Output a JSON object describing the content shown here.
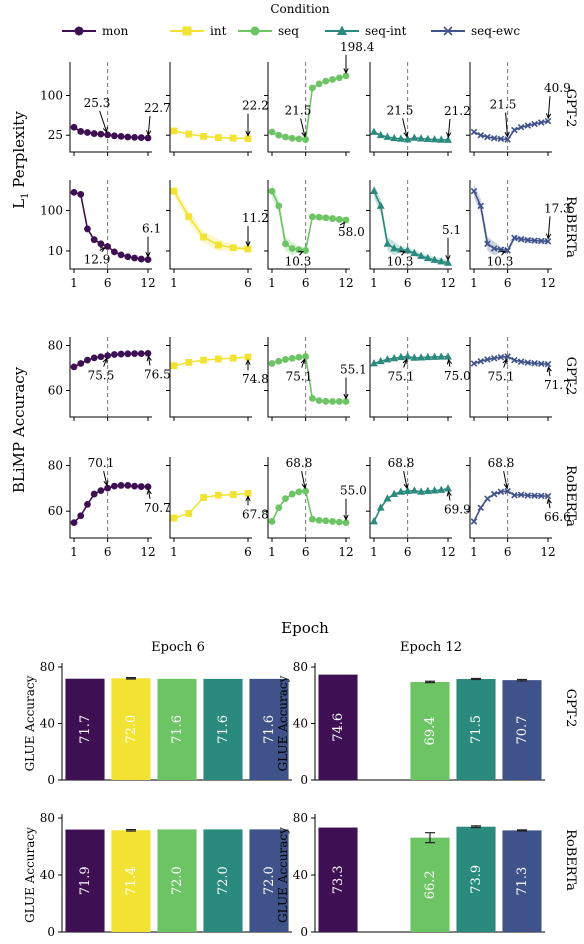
{
  "legend": {
    "title": "Condition",
    "entries": [
      {
        "key": "mon",
        "label": "mon",
        "color": "#3e1053",
        "marker": "circle"
      },
      {
        "key": "int",
        "label": "int",
        "color": "#f2e233",
        "marker": "square"
      },
      {
        "key": "seq",
        "label": "seq",
        "color": "#6cc464",
        "marker": "circle"
      },
      {
        "key": "seq-int",
        "label": "seq-int",
        "color": "#2a8a7d",
        "marker": "triangle"
      },
      {
        "key": "seq-ewc",
        "label": "seq-ewc",
        "color": "#3f5289",
        "marker": "x"
      }
    ]
  },
  "labels": {
    "ppl_ylabel": "L",
    "ppl_ylabel_sub": "1",
    "ppl_ylabel_rest": " Perplexity",
    "blimp_ylabel": "BLiMP Accuracy",
    "epoch_xlabel": "Epoch",
    "glue_ylabel": "GLUE Accuracy",
    "row_gpt2": "GPT-2",
    "row_roberta": "RoBERTa",
    "glue_title_e6": "Epoch 6",
    "glue_title_e12": "Epoch 12"
  },
  "chart_data": [
    {
      "type": "line",
      "title": "",
      "ylabel": "L1 Perplexity",
      "model": "GPT-2",
      "y_scale": "log",
      "yticks": [
        25,
        100
      ],
      "ylim": [
        16,
        280
      ],
      "xticks": [
        1,
        6,
        12
      ],
      "vline": 6,
      "series": [
        {
          "name": "mon",
          "x": [
            1,
            2,
            3,
            4,
            5,
            6,
            7,
            8,
            9,
            10,
            11,
            12
          ],
          "y": [
            33,
            28.5,
            27.5,
            26.5,
            26,
            25.3,
            24.5,
            24,
            23.5,
            23.2,
            23,
            22.7
          ],
          "annotations": [
            {
              "x": 6,
              "text": "25.3"
            },
            {
              "x": 12,
              "text": "22.7"
            }
          ]
        },
        {
          "name": "int",
          "x": [
            1,
            2,
            3,
            4,
            5,
            6
          ],
          "y": [
            29,
            26,
            24,
            23,
            22.6,
            22.2
          ],
          "annotations": [
            {
              "x": 6,
              "text": "22.2"
            }
          ]
        },
        {
          "name": "seq",
          "x": [
            1,
            2,
            3,
            4,
            5,
            6,
            7,
            8,
            9,
            10,
            11,
            12
          ],
          "y": [
            28,
            25,
            23.5,
            22.5,
            22,
            21.5,
            130,
            150,
            165,
            175,
            185,
            198.4
          ],
          "band": 0.05,
          "annotations": [
            {
              "x": 6,
              "text": "21.5"
            },
            {
              "x": 12,
              "text": "198.4"
            }
          ]
        },
        {
          "name": "seq-int",
          "x": [
            1,
            2,
            3,
            4,
            5,
            6,
            7,
            8,
            9,
            10,
            11,
            12
          ],
          "y": [
            28,
            25,
            23.5,
            22.5,
            22,
            21.5,
            22.8,
            22.2,
            21.8,
            21.5,
            21.3,
            21.2
          ],
          "annotations": [
            {
              "x": 6,
              "text": "21.5"
            },
            {
              "x": 12,
              "text": "21.2"
            }
          ]
        },
        {
          "name": "seq-ewc",
          "x": [
            1,
            2,
            3,
            4,
            5,
            6,
            7,
            8,
            9,
            10,
            11,
            12
          ],
          "y": [
            28,
            25,
            23.5,
            22.5,
            22,
            21.5,
            30,
            33,
            35,
            37,
            39,
            40.9
          ],
          "annotations": [
            {
              "x": 6,
              "text": "21.5"
            },
            {
              "x": 12,
              "text": "40.9"
            }
          ]
        }
      ]
    },
    {
      "type": "line",
      "title": "",
      "ylabel": "L1 Perplexity",
      "model": "RoBERTa",
      "y_scale": "log",
      "yticks": [
        10,
        100
      ],
      "ylim": [
        4.5,
        450
      ],
      "xticks": [
        1,
        6,
        12
      ],
      "vline": 6,
      "series": [
        {
          "name": "mon",
          "x": [
            1,
            2,
            3,
            4,
            5,
            6,
            7,
            8,
            9,
            10,
            11,
            12
          ],
          "y": [
            280,
            250,
            35,
            19,
            15,
            12.9,
            9.5,
            8,
            7.2,
            6.7,
            6.3,
            6.1
          ],
          "annotations": [
            {
              "x": 6,
              "text": "12.9"
            },
            {
              "x": 12,
              "text": "6.1"
            }
          ]
        },
        {
          "name": "int",
          "x": [
            1,
            2,
            3,
            4,
            5,
            6
          ],
          "y": [
            300,
            70,
            22,
            14,
            12,
            11.2
          ],
          "band": 0.25,
          "annotations": [
            {
              "x": 6,
              "text": "11.2"
            }
          ]
        },
        {
          "name": "seq",
          "x": [
            1,
            2,
            3,
            4,
            5,
            6,
            7,
            8,
            9,
            10,
            11,
            12
          ],
          "y": [
            300,
            130,
            15,
            11.5,
            10.8,
            10.3,
            70,
            68,
            66,
            63,
            60,
            58
          ],
          "band": 0.3,
          "annotations": [
            {
              "x": 6,
              "text": "10.3"
            },
            {
              "x": 12,
              "text": "58.0"
            }
          ]
        },
        {
          "name": "seq-int",
          "x": [
            1,
            2,
            3,
            4,
            5,
            6,
            7,
            8,
            9,
            10,
            11,
            12
          ],
          "y": [
            300,
            130,
            15,
            11.5,
            10.8,
            10.3,
            8.8,
            7.5,
            6.6,
            6,
            5.5,
            5.1
          ],
          "band": 0.3,
          "annotations": [
            {
              "x": 6,
              "text": "10.3"
            },
            {
              "x": 12,
              "text": "5.1"
            }
          ]
        },
        {
          "name": "seq-ewc",
          "x": [
            1,
            2,
            3,
            4,
            5,
            6,
            7,
            8,
            9,
            10,
            11,
            12
          ],
          "y": [
            300,
            130,
            15,
            11.5,
            10.8,
            10.3,
            21,
            19.5,
            18.5,
            18,
            17.6,
            17.3
          ],
          "band": 0.3,
          "annotations": [
            {
              "x": 6,
              "text": "10.3"
            },
            {
              "x": 12,
              "text": "17.3"
            }
          ]
        }
      ]
    },
    {
      "type": "line",
      "title": "",
      "ylabel": "BLiMP Accuracy",
      "model": "GPT-2",
      "yticks": [
        60,
        80
      ],
      "ylim": [
        50,
        82
      ],
      "xticks": [
        1,
        6,
        12
      ],
      "vline": 6,
      "series": [
        {
          "name": "mon",
          "x": [
            1,
            2,
            3,
            4,
            5,
            6,
            7,
            8,
            9,
            10,
            11,
            12
          ],
          "y": [
            70.5,
            72,
            73.5,
            74.5,
            75,
            75.5,
            76,
            76.2,
            76.3,
            76.4,
            76.4,
            76.5
          ],
          "annotations": [
            {
              "x": 6,
              "text": "75.5"
            },
            {
              "x": 12,
              "text": "76.5"
            }
          ]
        },
        {
          "name": "int",
          "x": [
            1,
            2,
            3,
            4,
            5,
            6
          ],
          "y": [
            71,
            72.5,
            73.5,
            74,
            74.4,
            74.8
          ],
          "annotations": [
            {
              "x": 6,
              "text": "74.8"
            }
          ]
        },
        {
          "name": "seq",
          "x": [
            1,
            2,
            3,
            4,
            5,
            6,
            7,
            8,
            9,
            10,
            11,
            12
          ],
          "y": [
            72,
            73,
            73.8,
            74.3,
            74.8,
            75.1,
            56.5,
            55.5,
            55.2,
            55.1,
            55.1,
            55.1
          ],
          "annotations": [
            {
              "x": 6,
              "text": "75.1"
            },
            {
              "x": 12,
              "text": "55.1"
            }
          ]
        },
        {
          "name": "seq-int",
          "x": [
            1,
            2,
            3,
            4,
            5,
            6,
            7,
            8,
            9,
            10,
            11,
            12
          ],
          "y": [
            72,
            73,
            73.8,
            74.3,
            74.8,
            75.1,
            74.5,
            74.6,
            74.8,
            74.9,
            75,
            75
          ],
          "annotations": [
            {
              "x": 6,
              "text": "75.1"
            },
            {
              "x": 12,
              "text": "75.0"
            }
          ]
        },
        {
          "name": "seq-ewc",
          "x": [
            1,
            2,
            3,
            4,
            5,
            6,
            7,
            8,
            9,
            10,
            11,
            12
          ],
          "y": [
            72,
            73,
            73.8,
            74.3,
            74.8,
            75.1,
            73.5,
            72.8,
            72.4,
            72.1,
            71.9,
            71.7
          ],
          "annotations": [
            {
              "x": 6,
              "text": "75.1"
            },
            {
              "x": 12,
              "text": "71.7"
            }
          ]
        }
      ]
    },
    {
      "type": "line",
      "title": "",
      "ylabel": "BLiMP Accuracy",
      "model": "RoBERTa",
      "yticks": [
        60,
        80
      ],
      "ylim": [
        50,
        82
      ],
      "xticks": [
        1,
        6,
        12
      ],
      "vline": 6,
      "series": [
        {
          "name": "mon",
          "x": [
            1,
            2,
            3,
            4,
            5,
            6,
            7,
            8,
            9,
            10,
            11,
            12
          ],
          "y": [
            55,
            58,
            63,
            67.5,
            69,
            70.1,
            71,
            71.3,
            71.3,
            71,
            70.8,
            70.7
          ],
          "annotations": [
            {
              "x": 6,
              "text": "70.1"
            },
            {
              "x": 12,
              "text": "70.7"
            }
          ]
        },
        {
          "name": "int",
          "x": [
            1,
            2,
            3,
            4,
            5,
            6
          ],
          "y": [
            57,
            59,
            66,
            67,
            67.3,
            67.8
          ],
          "annotations": [
            {
              "x": 6,
              "text": "67.8"
            }
          ]
        },
        {
          "name": "seq",
          "x": [
            1,
            2,
            3,
            4,
            5,
            6,
            7,
            8,
            9,
            10,
            11,
            12
          ],
          "y": [
            55.5,
            61.5,
            65.5,
            67.5,
            68.5,
            68.8,
            56.5,
            56,
            55.8,
            55.5,
            55.2,
            55
          ],
          "annotations": [
            {
              "x": 6,
              "text": "68.8"
            },
            {
              "x": 12,
              "text": "55.0"
            }
          ]
        },
        {
          "name": "seq-int",
          "x": [
            1,
            2,
            3,
            4,
            5,
            6,
            7,
            8,
            9,
            10,
            11,
            12
          ],
          "y": [
            55.5,
            61.5,
            65.5,
            67.5,
            68.5,
            68.8,
            69,
            68.5,
            68.8,
            69,
            69.3,
            69.9
          ],
          "annotations": [
            {
              "x": 6,
              "text": "68.8"
            },
            {
              "x": 12,
              "text": "69.9"
            }
          ]
        },
        {
          "name": "seq-ewc",
          "x": [
            1,
            2,
            3,
            4,
            5,
            6,
            7,
            8,
            9,
            10,
            11,
            12
          ],
          "y": [
            55.5,
            61.5,
            65.5,
            67.5,
            68.5,
            68.8,
            67,
            67.2,
            66.9,
            66.8,
            66.7,
            66.6
          ],
          "annotations": [
            {
              "x": 6,
              "text": "68.8"
            },
            {
              "x": 12,
              "text": "66.6"
            }
          ]
        }
      ]
    },
    {
      "type": "bar",
      "title": "Epoch 6",
      "ylabel": "GLUE Accuracy",
      "model": "GPT-2",
      "ylim": [
        0,
        80
      ],
      "yticks": [
        0,
        40,
        80
      ],
      "categories": [
        "mon",
        "int",
        "seq",
        "seq-int",
        "seq-ewc"
      ],
      "values": [
        71.7,
        72.0,
        71.6,
        71.6,
        71.6
      ],
      "labels": [
        "71.7",
        "72.0",
        "71.6",
        "71.6",
        "71.6"
      ],
      "errors": [
        0,
        0.5,
        0,
        0,
        0
      ]
    },
    {
      "type": "bar",
      "title": "Epoch 12",
      "ylabel": "GLUE Accuracy",
      "model": "GPT-2",
      "ylim": [
        0,
        80
      ],
      "yticks": [
        0,
        40,
        80
      ],
      "categories": [
        "mon",
        "int",
        "seq",
        "seq-int",
        "seq-ewc"
      ],
      "values": [
        74.6,
        null,
        69.4,
        71.5,
        70.7
      ],
      "labels": [
        "74.6",
        "",
        "69.4",
        "71.5",
        "70.7"
      ],
      "errors": [
        0,
        0,
        0.5,
        0.4,
        0.5
      ]
    },
    {
      "type": "bar",
      "title": "",
      "ylabel": "GLUE Accuracy",
      "model": "RoBERTa",
      "ylim": [
        0,
        80
      ],
      "yticks": [
        0,
        40,
        80
      ],
      "categories": [
        "mon",
        "int",
        "seq",
        "seq-int",
        "seq-ewc"
      ],
      "values": [
        71.9,
        71.4,
        72.0,
        72.0,
        72.0
      ],
      "labels": [
        "71.9",
        "71.4",
        "72.0",
        "72.0",
        "72.0"
      ],
      "errors": [
        0,
        0.5,
        0,
        0,
        0
      ]
    },
    {
      "type": "bar",
      "title": "",
      "ylabel": "GLUE Accuracy",
      "model": "RoBERTa",
      "ylim": [
        0,
        80
      ],
      "yticks": [
        0,
        40,
        80
      ],
      "categories": [
        "mon",
        "int",
        "seq",
        "seq-int",
        "seq-ewc"
      ],
      "values": [
        73.3,
        null,
        66.2,
        73.9,
        71.3
      ],
      "labels": [
        "73.3",
        "",
        "66.2",
        "73.9",
        "71.3"
      ],
      "errors": [
        0,
        0,
        3.5,
        0.6,
        0.4
      ]
    }
  ]
}
